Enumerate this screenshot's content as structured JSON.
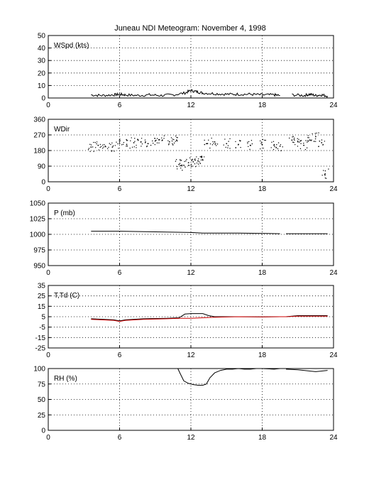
{
  "figure": {
    "title": "Juneau NDI Meteogram:  November  4, 1998"
  },
  "chart_data": [
    {
      "type": "line",
      "id": "wspd",
      "panel_label": "WSpd (kts)",
      "xlim": [
        0,
        24
      ],
      "ylim": [
        0,
        50
      ],
      "x_ticks": [
        0,
        6,
        12,
        18,
        24
      ],
      "y_ticks": [
        0,
        10,
        20,
        30,
        40,
        50
      ],
      "grid": true,
      "series": [
        {
          "color": "#000000",
          "style": "noisy-line",
          "x": [
            3.6,
            4.5,
            5.5,
            6.0,
            6.5,
            7.5,
            8.5,
            9.5,
            10.5,
            11.5,
            12.0,
            12.5,
            13.0,
            14.0,
            15.0,
            16.0,
            17.0,
            18.0,
            19.0,
            19.5
          ],
          "y": [
            2.5,
            2,
            2.5,
            3,
            2.5,
            2,
            2.5,
            2,
            2.5,
            4,
            6,
            5,
            4,
            3.5,
            3,
            3,
            3,
            2.5,
            2.5,
            2
          ]
        },
        {
          "color": "#000000",
          "style": "noisy-line",
          "x": [
            20.5,
            21.5,
            22.0,
            22.5,
            23.0,
            23.5
          ],
          "y": [
            2.5,
            2,
            3,
            2,
            2.5,
            1.5
          ]
        }
      ]
    },
    {
      "type": "scatter",
      "id": "wdir",
      "panel_label": "WDir",
      "xlim": [
        0,
        24
      ],
      "ylim": [
        0,
        360
      ],
      "x_ticks": [
        0,
        6,
        12,
        18,
        24
      ],
      "y_ticks": [
        0,
        90,
        180,
        270,
        360
      ],
      "grid": true,
      "series": [
        {
          "color": "#000000",
          "style": "dots",
          "x": [
            3.6,
            4.2,
            4.8,
            5.4,
            6.0,
            6.6,
            7.2,
            7.8,
            8.4,
            9.0,
            9.6,
            10.2,
            10.8,
            11.0,
            11.4,
            11.8,
            12.2,
            12.6,
            13.0,
            13.4,
            14.0,
            15.0,
            16.0,
            17.0,
            18.0,
            19.0,
            19.5,
            20.5,
            21.0,
            21.5,
            22.0,
            22.5,
            23.0,
            23.3
          ],
          "y": [
            200,
            210,
            205,
            200,
            220,
            215,
            225,
            230,
            220,
            235,
            240,
            230,
            240,
            100,
            95,
            110,
            115,
            120,
            125,
            220,
            230,
            220,
            215,
            210,
            215,
            210,
            205,
            240,
            230,
            210,
            240,
            260,
            225,
            45
          ]
        }
      ]
    },
    {
      "type": "line",
      "id": "pressure",
      "panel_label": "P (mb)",
      "xlim": [
        0,
        24
      ],
      "ylim": [
        950,
        1050
      ],
      "x_ticks": [
        0,
        6,
        12,
        18,
        24
      ],
      "y_ticks": [
        950,
        975,
        1000,
        1025,
        1050
      ],
      "grid": true,
      "series": [
        {
          "color": "#000000",
          "style": "line",
          "x": [
            3.6,
            6.0,
            9.0,
            12.0,
            13.0,
            16.0,
            19.5
          ],
          "y": [
            1005,
            1005,
            1004,
            1003,
            1002,
            1002,
            1001
          ]
        },
        {
          "color": "#000000",
          "style": "line",
          "x": [
            20.0,
            23.5
          ],
          "y": [
            1001,
            1001
          ]
        }
      ]
    },
    {
      "type": "line",
      "id": "temp",
      "panel_label": "T,Td (C)",
      "xlim": [
        0,
        24
      ],
      "ylim": [
        -25,
        35
      ],
      "x_ticks": [
        0,
        6,
        12,
        18,
        24
      ],
      "y_ticks": [
        -25,
        -15,
        -5,
        5,
        15,
        25,
        35
      ],
      "grid": true,
      "series": [
        {
          "color": "#000000",
          "style": "line",
          "x": [
            3.6,
            5.5,
            6.0,
            6.5,
            8.0,
            10.0,
            11.0,
            11.5,
            12.0,
            13.0,
            13.5,
            14.0,
            16.0,
            18.0,
            19.5,
            20.0,
            21.0,
            23.5
          ],
          "y": [
            3,
            2,
            1,
            2,
            3,
            3.5,
            4,
            7.5,
            8,
            8,
            6,
            5,
            5,
            4.8,
            5,
            5,
            6,
            6
          ]
        },
        {
          "color": "#cc0000",
          "style": "line",
          "x": [
            3.6,
            5.5,
            6.0,
            6.5,
            8.0,
            10.0,
            11.0,
            12.0,
            13.0,
            14.0,
            16.0,
            18.0,
            19.5,
            20.0,
            21.0,
            23.5
          ],
          "y": [
            2.5,
            1.5,
            0.5,
            1.5,
            2.5,
            3,
            3.5,
            3.5,
            4,
            4.5,
            5,
            4.8,
            5,
            5,
            5.5,
            5.5
          ]
        }
      ]
    },
    {
      "type": "line",
      "id": "rh",
      "panel_label": "RH (%)",
      "xlim": [
        0,
        24
      ],
      "ylim": [
        0,
        100
      ],
      "x_ticks": [
        0,
        6,
        12,
        18,
        24
      ],
      "y_ticks": [
        0,
        25,
        50,
        75,
        100
      ],
      "grid": true,
      "series": [
        {
          "color": "#000000",
          "style": "line",
          "x": [
            10.9,
            11.1,
            11.4,
            11.8,
            12.2,
            12.6,
            13.0,
            13.3,
            13.6,
            14.0,
            14.5,
            15.0,
            15.5,
            16.0,
            16.5,
            17.0,
            17.5,
            18.0,
            19.0,
            19.5
          ],
          "y": [
            100,
            92,
            80,
            76,
            74,
            73,
            73,
            75,
            85,
            93,
            97,
            99,
            99,
            100,
            99,
            99,
            100,
            100,
            99,
            100
          ]
        },
        {
          "color": "#000000",
          "style": "line",
          "x": [
            20.0,
            21.0,
            22.0,
            22.5,
            23.0,
            23.5
          ],
          "y": [
            99,
            98,
            96,
            95,
            96,
            97
          ]
        }
      ]
    }
  ]
}
